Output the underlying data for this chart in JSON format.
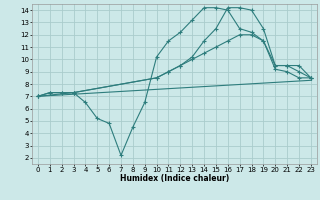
{
  "xlabel": "Humidex (Indice chaleur)",
  "xlim": [
    -0.5,
    23.5
  ],
  "ylim": [
    1.5,
    14.5
  ],
  "xticks": [
    0,
    1,
    2,
    3,
    4,
    5,
    6,
    7,
    8,
    9,
    10,
    11,
    12,
    13,
    14,
    15,
    16,
    17,
    18,
    19,
    20,
    21,
    22,
    23
  ],
  "yticks": [
    2,
    3,
    4,
    5,
    6,
    7,
    8,
    9,
    10,
    11,
    12,
    13,
    14
  ],
  "bg_color": "#cce8e8",
  "grid_color": "#aacccc",
  "line_color": "#2e7d7d",
  "lines": [
    {
      "x": [
        0,
        1,
        2,
        3,
        10,
        11,
        12,
        13,
        14,
        15,
        16,
        17,
        18,
        19,
        20,
        21,
        22,
        23
      ],
      "y": [
        7.0,
        7.3,
        7.3,
        7.3,
        8.5,
        9.0,
        9.5,
        10.2,
        11.5,
        12.5,
        14.2,
        14.2,
        14.0,
        12.5,
        9.5,
        9.5,
        9.5,
        8.5
      ],
      "marker": "+"
    },
    {
      "x": [
        0,
        1,
        2,
        3,
        10,
        11,
        12,
        13,
        14,
        15,
        16,
        17,
        18,
        19,
        20,
        21,
        22,
        23
      ],
      "y": [
        7.0,
        7.3,
        7.3,
        7.3,
        8.5,
        9.0,
        9.5,
        10.0,
        10.5,
        11.0,
        11.5,
        12.0,
        12.0,
        11.5,
        9.2,
        9.0,
        8.5,
        8.5
      ],
      "marker": "+"
    },
    {
      "x": [
        0,
        3,
        4,
        5,
        6,
        7,
        8,
        9,
        10,
        11,
        12,
        13,
        14,
        15,
        16,
        17,
        18,
        19,
        20,
        21,
        22,
        23
      ],
      "y": [
        7.0,
        7.3,
        6.5,
        5.2,
        4.8,
        2.2,
        4.5,
        6.5,
        10.2,
        11.5,
        12.2,
        13.2,
        14.2,
        14.2,
        14.0,
        12.5,
        12.2,
        11.5,
        9.5,
        9.5,
        9.0,
        8.5
      ],
      "marker": "+"
    },
    {
      "x": [
        0,
        23
      ],
      "y": [
        7.0,
        8.3
      ],
      "marker": null
    }
  ]
}
